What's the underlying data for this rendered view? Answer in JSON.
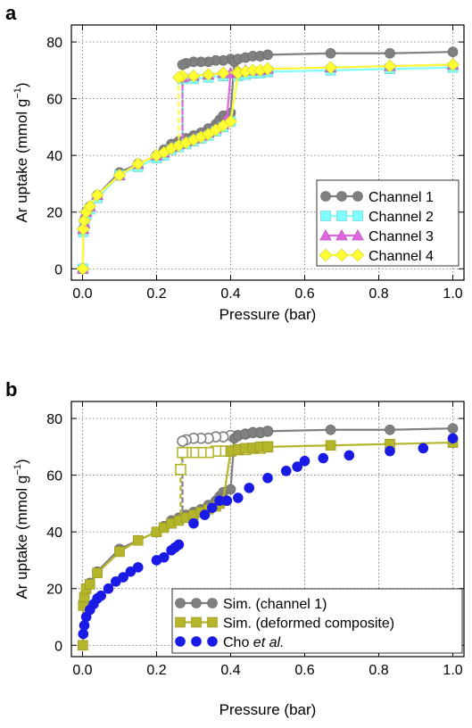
{
  "panels": [
    {
      "label": "a",
      "xlabel": "Pressure (bar)",
      "ylabel": "Ar uptake (mmol g",
      "ylabel_sup": "−1",
      "ylabel_end": ")",
      "xlim": [
        -0.03,
        1.03
      ],
      "ylim": [
        -4,
        86
      ],
      "xticks": [
        "0.0",
        "0.2",
        "0.4",
        "0.6",
        "0.8",
        "1.0"
      ],
      "xtick_values": [
        0.0,
        0.2,
        0.4,
        0.6,
        0.8,
        1.0
      ],
      "yticks": [
        "0",
        "20",
        "40",
        "60",
        "80"
      ],
      "ytick_values": [
        0,
        20,
        40,
        60,
        80
      ],
      "grid": true,
      "legend_position": "lower-right"
    },
    {
      "label": "b",
      "xlabel": "Pressure (bar)",
      "ylabel": "Ar uptake (mmol g",
      "ylabel_sup": "−1",
      "ylabel_end": ")",
      "xlim": [
        -0.03,
        1.03
      ],
      "ylim": [
        -4,
        86
      ],
      "xticks": [
        "0.0",
        "0.2",
        "0.4",
        "0.6",
        "0.8",
        "1.0"
      ],
      "xtick_values": [
        0.0,
        0.2,
        0.4,
        0.6,
        0.8,
        1.0
      ],
      "yticks": [
        "0",
        "20",
        "40",
        "60",
        "80"
      ],
      "ytick_values": [
        0,
        20,
        40,
        60,
        80
      ],
      "grid": true,
      "legend_position": "lower-right"
    }
  ],
  "chart_data": [
    {
      "type": "line",
      "panel": "a",
      "series": [
        {
          "name": "Channel 1",
          "color": "#808080",
          "marker": "circle",
          "filled": true,
          "adsorption_x": [
            0.001,
            0.002,
            0.005,
            0.01,
            0.02,
            0.04,
            0.1,
            0.15,
            0.2,
            0.22,
            0.24,
            0.26,
            0.28,
            0.3,
            0.32,
            0.34,
            0.36,
            0.37,
            0.38,
            0.4,
            0.41,
            0.42,
            0.44,
            0.46,
            0.48,
            0.5,
            0.67,
            0.83,
            1.0
          ],
          "adsorption_y": [
            0,
            14,
            17,
            20,
            22,
            26,
            34,
            37,
            40,
            42,
            44,
            45,
            46,
            47,
            48,
            49.5,
            51,
            52.5,
            54,
            55,
            73,
            74,
            74.5,
            75,
            75,
            75.5,
            76,
            76,
            76.5
          ],
          "desorption_x": [
            0.5,
            0.48,
            0.46,
            0.44,
            0.42,
            0.4,
            0.38,
            0.36,
            0.34,
            0.32,
            0.3,
            0.28,
            0.27
          ],
          "desorption_y": [
            75.5,
            75,
            75,
            74.5,
            74,
            74,
            73.5,
            73.5,
            73,
            73,
            73,
            72.5,
            72
          ]
        },
        {
          "name": "Channel 2",
          "color": "#7fffff",
          "marker": "square",
          "filled": true,
          "adsorption_x": [
            0.001,
            0.002,
            0.005,
            0.01,
            0.02,
            0.04,
            0.1,
            0.15,
            0.2,
            0.22,
            0.24,
            0.26,
            0.28,
            0.3,
            0.32,
            0.34,
            0.36,
            0.38,
            0.4,
            0.42,
            0.44,
            0.46,
            0.48,
            0.5,
            0.67,
            0.83,
            1.0
          ],
          "adsorption_y": [
            0,
            13,
            16,
            19,
            21,
            25,
            33,
            36,
            39,
            40,
            42,
            43,
            44,
            45,
            46,
            47,
            48.5,
            50,
            52,
            68,
            68.5,
            69,
            69,
            69.5,
            70,
            70.5,
            71
          ],
          "desorption_x": [
            0.5,
            0.46,
            0.42,
            0.38,
            0.34,
            0.3,
            0.27
          ],
          "desorption_y": [
            69.5,
            69,
            68.5,
            68,
            67.5,
            67,
            67
          ]
        },
        {
          "name": "Channel 3",
          "color": "#e066e0",
          "marker": "triangle",
          "filled": true,
          "adsorption_x": [
            0.001,
            0.002,
            0.005,
            0.01,
            0.02,
            0.04,
            0.1,
            0.15,
            0.2,
            0.22,
            0.24,
            0.26,
            0.28,
            0.3,
            0.32,
            0.34,
            0.36,
            0.38,
            0.39,
            0.4,
            0.42,
            0.44,
            0.46,
            0.48,
            0.5,
            0.67,
            0.83,
            1.0
          ],
          "adsorption_y": [
            0,
            14,
            16,
            20,
            22,
            26,
            33,
            37,
            40,
            41,
            43,
            44,
            45,
            46,
            47,
            48,
            49.5,
            51,
            53,
            69,
            69.5,
            70,
            70,
            70,
            70.5,
            71,
            71.5,
            72
          ],
          "desorption_x": [
            0.5,
            0.46,
            0.42,
            0.38,
            0.34,
            0.3,
            0.27
          ],
          "desorption_y": [
            70.5,
            70,
            69.5,
            69,
            68.5,
            68,
            67.5
          ]
        },
        {
          "name": "Channel 4",
          "color": "#ffff33",
          "marker": "diamond",
          "filled": true,
          "adsorption_x": [
            0.001,
            0.002,
            0.005,
            0.01,
            0.02,
            0.04,
            0.1,
            0.15,
            0.2,
            0.22,
            0.24,
            0.26,
            0.28,
            0.3,
            0.32,
            0.34,
            0.36,
            0.38,
            0.4,
            0.42,
            0.44,
            0.46,
            0.48,
            0.5,
            0.67,
            0.83,
            1.0
          ],
          "adsorption_y": [
            0,
            14,
            17,
            20,
            22,
            26,
            33,
            37,
            40,
            41,
            42.5,
            43.5,
            44.5,
            45.5,
            46.5,
            47.5,
            49,
            50.5,
            52,
            69,
            69.5,
            70,
            70,
            70.5,
            71,
            71.5,
            72
          ],
          "desorption_x": [
            0.5,
            0.46,
            0.42,
            0.38,
            0.34,
            0.3,
            0.27,
            0.26
          ],
          "desorption_y": [
            70.5,
            70,
            69.5,
            69,
            68.5,
            68,
            68,
            67.5
          ]
        }
      ]
    },
    {
      "type": "line",
      "panel": "b",
      "series": [
        {
          "name": "Sim. (channel 1)",
          "color": "#808080",
          "marker": "circle",
          "filled": true,
          "adsorption_x": [
            0.001,
            0.002,
            0.005,
            0.01,
            0.02,
            0.04,
            0.1,
            0.15,
            0.2,
            0.22,
            0.24,
            0.26,
            0.28,
            0.3,
            0.32,
            0.34,
            0.36,
            0.37,
            0.38,
            0.4,
            0.41,
            0.42,
            0.44,
            0.46,
            0.48,
            0.5,
            0.67,
            0.83,
            1.0
          ],
          "adsorption_y": [
            0,
            14,
            17,
            20,
            22,
            26,
            34,
            37,
            40,
            42,
            44,
            45,
            46,
            47,
            48,
            49.5,
            51,
            52.5,
            54,
            55,
            73,
            74,
            74.5,
            75,
            75,
            75.5,
            76,
            76,
            76.5
          ],
          "desorption_x": [
            0.5,
            0.48,
            0.46,
            0.44,
            0.42,
            0.4,
            0.38,
            0.36,
            0.34,
            0.32,
            0.3,
            0.28,
            0.27
          ],
          "desorption_y": [
            75.5,
            75,
            75,
            74.5,
            74,
            74,
            73.5,
            73.5,
            73,
            73,
            73,
            72.5,
            72
          ]
        },
        {
          "name": "Sim. (deformed composite)",
          "color": "#b5b52a",
          "marker": "square",
          "filled": true,
          "adsorption_x": [
            0.001,
            0.002,
            0.005,
            0.01,
            0.02,
            0.04,
            0.1,
            0.15,
            0.2,
            0.22,
            0.24,
            0.26,
            0.28,
            0.3,
            0.32,
            0.34,
            0.36,
            0.37,
            0.38,
            0.4,
            0.42,
            0.44,
            0.46,
            0.48,
            0.5,
            0.67,
            0.83,
            1.0
          ],
          "adsorption_y": [
            0,
            14,
            17,
            20,
            21.5,
            25.5,
            33,
            37,
            40,
            41.5,
            43,
            44,
            45,
            46,
            47,
            48,
            49,
            50,
            51,
            68.5,
            69,
            69.5,
            69.5,
            70,
            70,
            70.5,
            71,
            71.5
          ],
          "desorption_x": [
            0.5,
            0.48,
            0.46,
            0.44,
            0.42,
            0.4,
            0.38,
            0.36,
            0.34,
            0.32,
            0.3,
            0.28,
            0.27,
            0.265
          ],
          "desorption_y": [
            70,
            69.5,
            69.5,
            69,
            69,
            68.5,
            68.5,
            68.5,
            68,
            68,
            68,
            68,
            68,
            62
          ]
        },
        {
          "name": "Cho et al.",
          "color": "#1a1ae6",
          "marker": "circle",
          "filled": true,
          "points_x": [
            0.002,
            0.005,
            0.01,
            0.02,
            0.03,
            0.04,
            0.05,
            0.07,
            0.09,
            0.11,
            0.13,
            0.15,
            0.2,
            0.22,
            0.24,
            0.25,
            0.26,
            0.3,
            0.33,
            0.35,
            0.37,
            0.39,
            0.42,
            0.45,
            0.5,
            0.55,
            0.58,
            0.6,
            0.65,
            0.72,
            0.83,
            0.92,
            1.0
          ],
          "points_y": [
            4,
            7,
            10,
            12.5,
            14.5,
            16.5,
            17.5,
            20,
            22.5,
            24,
            26,
            27.5,
            30,
            31,
            33.5,
            34.5,
            35.5,
            43,
            46,
            48.5,
            51,
            51,
            52,
            55.5,
            59,
            61.5,
            63,
            65,
            66,
            67,
            68.5,
            69.5,
            73
          ]
        }
      ]
    }
  ]
}
